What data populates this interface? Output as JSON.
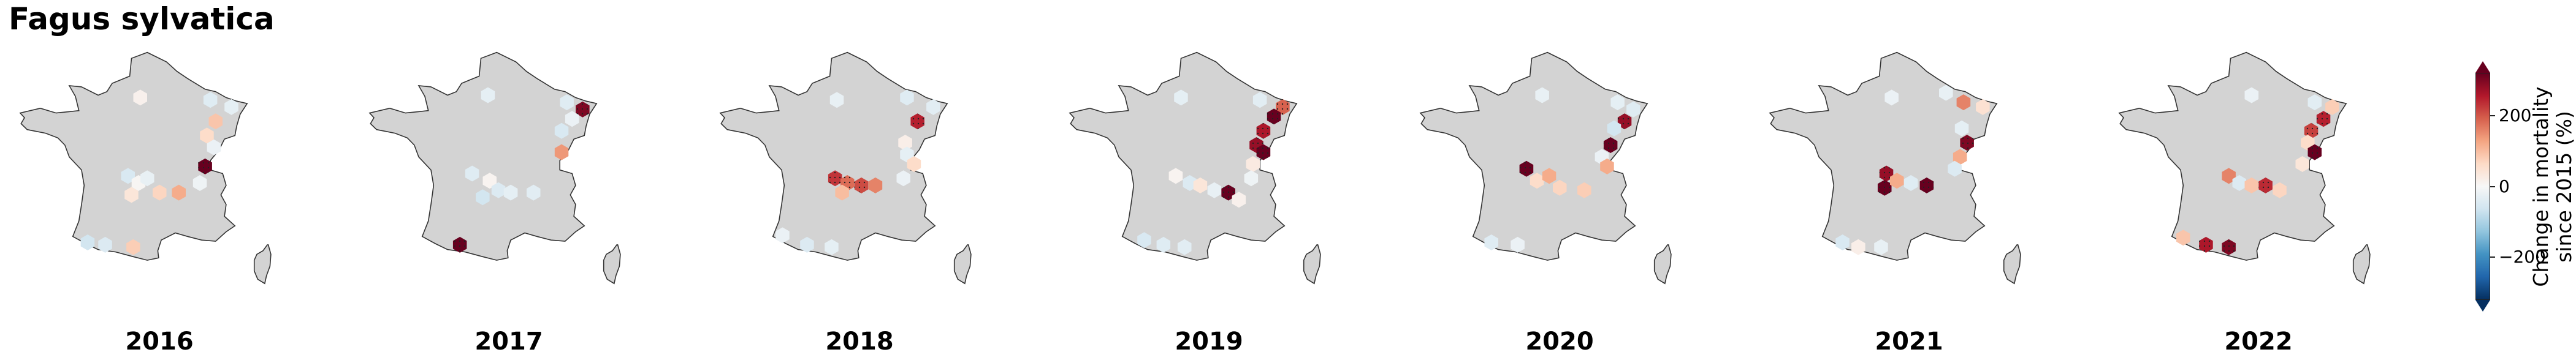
{
  "title": "Fagus sylvatica",
  "colorbar": {
    "label_line1": "Change in mortality",
    "label_line2": "since 2015 (%)",
    "ticks": [
      "200",
      "0",
      "−200"
    ],
    "tick_values": [
      200,
      0,
      -200
    ],
    "range": [
      -320,
      320
    ],
    "colormap": [
      "#053061",
      "#2166ac",
      "#4393c3",
      "#92c5de",
      "#d1e5f0",
      "#f7f7f7",
      "#fddbc7",
      "#f4a582",
      "#d6604d",
      "#b2182b",
      "#67001f"
    ]
  },
  "map_colors": {
    "land": "#d3d3d3",
    "outline": "#333333",
    "hatch": "#222222"
  },
  "years": [
    {
      "label": "2016",
      "cells": [
        {
          "lon": 2.1,
          "lat": 49.2,
          "value": 15
        },
        {
          "lon": 6.1,
          "lat": 49.1,
          "value": -40
        },
        {
          "lon": 7.3,
          "lat": 48.8,
          "value": -30
        },
        {
          "lon": 6.4,
          "lat": 48.2,
          "value": 90
        },
        {
          "lon": 5.9,
          "lat": 47.6,
          "value": 60
        },
        {
          "lon": 6.3,
          "lat": 47.1,
          "value": -20
        },
        {
          "lon": 5.8,
          "lat": 46.3,
          "value": 320
        },
        {
          "lon": 5.5,
          "lat": 45.6,
          "value": -15
        },
        {
          "lon": 1.4,
          "lat": 45.9,
          "value": -50
        },
        {
          "lon": 2.0,
          "lat": 45.6,
          "value": 5
        },
        {
          "lon": 2.5,
          "lat": 45.8,
          "value": -25
        },
        {
          "lon": 3.2,
          "lat": 45.2,
          "value": 70
        },
        {
          "lon": 1.6,
          "lat": 45.1,
          "value": 40
        },
        {
          "lon": 4.3,
          "lat": 45.2,
          "value": 120
        },
        {
          "lon": -0.9,
          "lat": 43.1,
          "value": -60
        },
        {
          "lon": 0.1,
          "lat": 43.0,
          "value": -45
        },
        {
          "lon": 1.7,
          "lat": 42.9,
          "value": 80
        }
      ]
    },
    {
      "label": "2017",
      "cells": [
        {
          "lon": 2.0,
          "lat": 49.3,
          "value": -30
        },
        {
          "lon": 6.5,
          "lat": 49.0,
          "value": -40
        },
        {
          "lon": 7.4,
          "lat": 48.7,
          "value": 300
        },
        {
          "lon": 6.8,
          "lat": 48.3,
          "value": -20
        },
        {
          "lon": 6.2,
          "lat": 47.8,
          "value": -50
        },
        {
          "lon": 6.2,
          "lat": 46.9,
          "value": 140
        },
        {
          "lon": 1.1,
          "lat": 46.0,
          "value": -40
        },
        {
          "lon": 2.1,
          "lat": 45.7,
          "value": 10
        },
        {
          "lon": 2.6,
          "lat": 45.3,
          "value": -45
        },
        {
          "lon": 3.3,
          "lat": 45.2,
          "value": -30
        },
        {
          "lon": 1.7,
          "lat": 45.0,
          "value": -60
        },
        {
          "lon": 4.6,
          "lat": 45.2,
          "value": -35
        },
        {
          "lon": 0.4,
          "lat": 43.0,
          "value": 320
        }
      ]
    },
    {
      "label": "2018",
      "cells": [
        {
          "lon": 1.9,
          "lat": 49.1,
          "value": -25
        },
        {
          "lon": 5.9,
          "lat": 49.2,
          "value": -40
        },
        {
          "lon": 7.4,
          "lat": 48.8,
          "value": -35
        },
        {
          "lon": 6.5,
          "lat": 48.2,
          "value": 250
        },
        {
          "lon": 5.8,
          "lat": 47.3,
          "value": 20
        },
        {
          "lon": 5.9,
          "lat": 46.8,
          "value": -30
        },
        {
          "lon": 6.3,
          "lat": 46.4,
          "value": 60
        },
        {
          "lon": 5.7,
          "lat": 45.8,
          "value": -20
        },
        {
          "lon": 1.8,
          "lat": 45.8,
          "value": 230
        },
        {
          "lon": 2.5,
          "lat": 45.6,
          "value": 180
        },
        {
          "lon": 3.3,
          "lat": 45.5,
          "value": 210
        },
        {
          "lon": 4.1,
          "lat": 45.5,
          "value": 160
        },
        {
          "lon": 2.2,
          "lat": 45.2,
          "value": 100
        },
        {
          "lon": -1.2,
          "lat": 43.4,
          "value": -20
        },
        {
          "lon": 0.2,
          "lat": 43.0,
          "value": -45
        },
        {
          "lon": 1.6,
          "lat": 42.9,
          "value": -30
        }
      ]
    },
    {
      "label": "2019",
      "cells": [
        {
          "lon": 1.6,
          "lat": 49.2,
          "value": -30
        },
        {
          "lon": 6.1,
          "lat": 49.1,
          "value": -35
        },
        {
          "lon": 7.4,
          "lat": 48.8,
          "value": 190
        },
        {
          "lon": 6.9,
          "lat": 48.4,
          "value": 320
        },
        {
          "lon": 6.3,
          "lat": 47.8,
          "value": 260
        },
        {
          "lon": 5.9,
          "lat": 47.2,
          "value": 280
        },
        {
          "lon": 6.3,
          "lat": 46.9,
          "value": 320
        },
        {
          "lon": 5.7,
          "lat": 46.4,
          "value": 30
        },
        {
          "lon": 5.6,
          "lat": 45.8,
          "value": -15
        },
        {
          "lon": 1.3,
          "lat": 45.9,
          "value": 10
        },
        {
          "lon": 2.1,
          "lat": 45.6,
          "value": -45
        },
        {
          "lon": 2.7,
          "lat": 45.5,
          "value": 40
        },
        {
          "lon": 3.5,
          "lat": 45.3,
          "value": -25
        },
        {
          "lon": 4.3,
          "lat": 45.2,
          "value": 320
        },
        {
          "lon": 4.9,
          "lat": 44.9,
          "value": 15
        },
        {
          "lon": -0.5,
          "lat": 43.2,
          "value": -50
        },
        {
          "lon": 0.6,
          "lat": 43.0,
          "value": -40
        },
        {
          "lon": 1.8,
          "lat": 42.9,
          "value": -35
        }
      ]
    },
    {
      "label": "2020",
      "cells": [
        {
          "lon": 2.2,
          "lat": 49.3,
          "value": -25
        },
        {
          "lon": 6.5,
          "lat": 49.0,
          "value": -30
        },
        {
          "lon": 7.4,
          "lat": 48.7,
          "value": -40
        },
        {
          "lon": 6.9,
          "lat": 48.2,
          "value": 280
        },
        {
          "lon": 6.3,
          "lat": 47.9,
          "value": -60
        },
        {
          "lon": 6.1,
          "lat": 47.2,
          "value": 320
        },
        {
          "lon": 5.6,
          "lat": 46.7,
          "value": -20
        },
        {
          "lon": 5.9,
          "lat": 46.3,
          "value": 120
        },
        {
          "lon": 1.3,
          "lat": 46.2,
          "value": 320
        },
        {
          "lon": 1.9,
          "lat": 45.7,
          "value": 60
        },
        {
          "lon": 2.6,
          "lat": 45.9,
          "value": 120
        },
        {
          "lon": 3.2,
          "lat": 45.4,
          "value": 70
        },
        {
          "lon": 4.6,
          "lat": 45.3,
          "value": 80
        },
        {
          "lon": -0.7,
          "lat": 43.1,
          "value": -40
        },
        {
          "lon": 0.8,
          "lat": 43.0,
          "value": -20
        }
      ]
    },
    {
      "label": "2021",
      "cells": [
        {
          "lon": 2.2,
          "lat": 49.2,
          "value": -20
        },
        {
          "lon": 5.3,
          "lat": 49.4,
          "value": -25
        },
        {
          "lon": 6.3,
          "lat": 49.0,
          "value": 160
        },
        {
          "lon": 7.4,
          "lat": 48.8,
          "value": 50
        },
        {
          "lon": 6.2,
          "lat": 47.9,
          "value": -30
        },
        {
          "lon": 6.5,
          "lat": 47.3,
          "value": 300
        },
        {
          "lon": 6.1,
          "lat": 46.7,
          "value": 120
        },
        {
          "lon": 5.8,
          "lat": 46.2,
          "value": -45
        },
        {
          "lon": 1.9,
          "lat": 46.0,
          "value": 280
        },
        {
          "lon": 1.8,
          "lat": 45.4,
          "value": 320
        },
        {
          "lon": 2.5,
          "lat": 45.7,
          "value": 120
        },
        {
          "lon": 3.3,
          "lat": 45.6,
          "value": -40
        },
        {
          "lon": 4.2,
          "lat": 45.5,
          "value": 320
        },
        {
          "lon": -0.6,
          "lat": 43.1,
          "value": -50
        },
        {
          "lon": 0.3,
          "lat": 42.9,
          "value": 20
        },
        {
          "lon": 1.6,
          "lat": 42.9,
          "value": -25
        }
      ]
    },
    {
      "label": "2022",
      "cells": [
        {
          "lon": 2.8,
          "lat": 49.3,
          "value": -20
        },
        {
          "lon": 6.4,
          "lat": 49.0,
          "value": -35
        },
        {
          "lon": 7.4,
          "lat": 48.8,
          "value": 80
        },
        {
          "lon": 6.9,
          "lat": 48.3,
          "value": 250
        },
        {
          "lon": 6.2,
          "lat": 47.8,
          "value": 220
        },
        {
          "lon": 6.0,
          "lat": 47.3,
          "value": 60
        },
        {
          "lon": 6.4,
          "lat": 46.9,
          "value": 320
        },
        {
          "lon": 5.7,
          "lat": 46.4,
          "value": 40
        },
        {
          "lon": 1.5,
          "lat": 45.9,
          "value": 160
        },
        {
          "lon": 2.1,
          "lat": 45.6,
          "value": -45
        },
        {
          "lon": 2.8,
          "lat": 45.5,
          "value": 90
        },
        {
          "lon": 3.6,
          "lat": 45.5,
          "value": 240
        },
        {
          "lon": 4.4,
          "lat": 45.3,
          "value": 70
        },
        {
          "lon": -1.1,
          "lat": 43.3,
          "value": 90
        },
        {
          "lon": 0.2,
          "lat": 43.0,
          "value": 260
        },
        {
          "lon": 1.5,
          "lat": 42.9,
          "value": 300
        }
      ]
    }
  ]
}
